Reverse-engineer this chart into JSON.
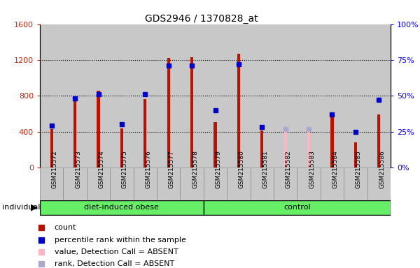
{
  "title": "GDS2946 / 1370828_at",
  "samples": [
    "GSM215572",
    "GSM215573",
    "GSM215574",
    "GSM215575",
    "GSM215576",
    "GSM215577",
    "GSM215578",
    "GSM215579",
    "GSM215580",
    "GSM215581",
    "GSM215582",
    "GSM215583",
    "GSM215584",
    "GSM215585",
    "GSM215586"
  ],
  "count_values": [
    430,
    750,
    860,
    440,
    760,
    1220,
    1230,
    510,
    1270,
    410,
    0,
    0,
    600,
    280,
    590
  ],
  "absent_bar_values": [
    0,
    0,
    0,
    0,
    0,
    0,
    0,
    0,
    0,
    0,
    420,
    420,
    0,
    0,
    0
  ],
  "rank_values": [
    29,
    48,
    51,
    30,
    51,
    71,
    71,
    40,
    72,
    28,
    0,
    0,
    37,
    25,
    47
  ],
  "absent_rank_values": [
    0,
    0,
    0,
    0,
    0,
    0,
    0,
    0,
    0,
    0,
    27,
    27,
    0,
    0,
    0
  ],
  "absent_samples": [
    10,
    11
  ],
  "obese_group": {
    "label": "diet-induced obese",
    "start": 0,
    "end": 6
  },
  "control_group": {
    "label": "control",
    "start": 7,
    "end": 14
  },
  "ylim_left": [
    0,
    1600
  ],
  "ylim_right": [
    0,
    100
  ],
  "yticks_left": [
    0,
    400,
    800,
    1200,
    1600
  ],
  "yticks_right": [
    0,
    25,
    50,
    75,
    100
  ],
  "yticklabels_right": [
    "0%",
    "25%",
    "50%",
    "75%",
    "100%"
  ],
  "bar_color": "#bb1100",
  "absent_bar_color": "#ffb6c1",
  "rank_color": "#0000cc",
  "absent_rank_color": "#aaaacc",
  "cell_bg_color": "#c8c8c8",
  "group_color": "#66ee66",
  "legend_items": [
    {
      "label": "count",
      "color": "#bb1100"
    },
    {
      "label": "percentile rank within the sample",
      "color": "#0000cc"
    },
    {
      "label": "value, Detection Call = ABSENT",
      "color": "#ffb6c1"
    },
    {
      "label": "rank, Detection Call = ABSENT",
      "color": "#aaaacc"
    }
  ]
}
